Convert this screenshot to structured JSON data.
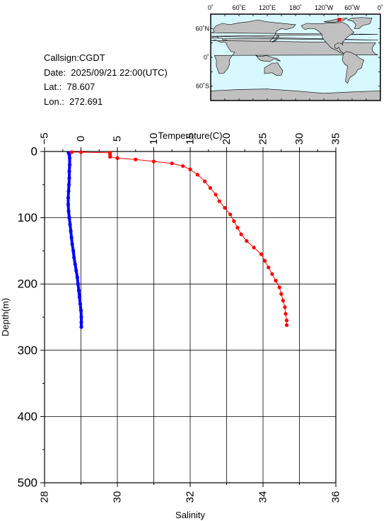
{
  "info": {
    "callsign": "Callsign:CGDT",
    "date": "Date:  2025/09/21 22:00(UTC)",
    "lat": "Lat.:  78.607",
    "lon": "Lon.:  272.691"
  },
  "map": {
    "top_labels": [
      "0˚",
      "60˚E",
      "120˚E",
      "180˚",
      "120˚W",
      "60˚W",
      "0˚"
    ],
    "left_labels": [
      "60˚N",
      "0˚",
      "60˚S"
    ],
    "ocean_color": "#d8f8ff",
    "land_color": "#c0c0c0",
    "marker_color": "#ff0000",
    "station": {
      "lat": 78.607,
      "lon": 272.691
    }
  },
  "chart_data": {
    "type": "scatter",
    "title": "",
    "top_axis": {
      "label": "Temperature(C)",
      "range": [
        -5,
        35
      ],
      "ticks": [
        "−5",
        "0",
        "5",
        "10",
        "15",
        "20",
        "25",
        "30",
        "35"
      ]
    },
    "bottom_axis": {
      "label": "Salinity",
      "range": [
        28,
        36
      ],
      "ticks": [
        "28",
        "30",
        "32",
        "34",
        "36"
      ]
    },
    "left_axis": {
      "label": "Depth(m)",
      "range": [
        0,
        500
      ],
      "inverted": true,
      "ticks": [
        "0",
        "100",
        "200",
        "300",
        "400",
        "500"
      ]
    },
    "grid": true,
    "series": [
      {
        "color": "#0000ff",
        "axis": "top",
        "points": [
          [
            -1.7,
            2
          ],
          [
            -1.6,
            5
          ],
          [
            -1.55,
            10
          ],
          [
            -1.55,
            20
          ],
          [
            -1.6,
            30
          ],
          [
            -1.6,
            40
          ],
          [
            -1.65,
            50
          ],
          [
            -1.7,
            60
          ],
          [
            -1.75,
            70
          ],
          [
            -1.75,
            80
          ],
          [
            -1.7,
            90
          ],
          [
            -1.6,
            100
          ],
          [
            -1.5,
            110
          ],
          [
            -1.4,
            120
          ],
          [
            -1.3,
            130
          ],
          [
            -1.2,
            140
          ],
          [
            -1.05,
            150
          ],
          [
            -0.95,
            160
          ],
          [
            -0.8,
            170
          ],
          [
            -0.65,
            180
          ],
          [
            -0.5,
            190
          ],
          [
            -0.4,
            200
          ],
          [
            -0.3,
            210
          ],
          [
            -0.2,
            220
          ],
          [
            -0.1,
            230
          ],
          [
            0.0,
            240
          ],
          [
            0.05,
            250
          ],
          [
            0.05,
            258
          ],
          [
            0.05,
            265
          ]
        ]
      },
      {
        "color": "#ff0000",
        "axis": "bottom",
        "points": [
          [
            28.75,
            1
          ],
          [
            29.0,
            1
          ],
          [
            29.8,
            2
          ],
          [
            29.8,
            5
          ],
          [
            29.8,
            8
          ],
          [
            30.0,
            10
          ],
          [
            30.5,
            12
          ],
          [
            31.0,
            15
          ],
          [
            31.5,
            18
          ],
          [
            31.8,
            22
          ],
          [
            32.0,
            27
          ],
          [
            32.2,
            35
          ],
          [
            32.4,
            45
          ],
          [
            32.55,
            55
          ],
          [
            32.7,
            65
          ],
          [
            32.8,
            75
          ],
          [
            32.95,
            85
          ],
          [
            33.1,
            95
          ],
          [
            33.2,
            105
          ],
          [
            33.3,
            115
          ],
          [
            33.4,
            125
          ],
          [
            33.55,
            135
          ],
          [
            33.75,
            145
          ],
          [
            33.95,
            155
          ],
          [
            34.05,
            165
          ],
          [
            34.15,
            175
          ],
          [
            34.25,
            185
          ],
          [
            34.35,
            195
          ],
          [
            34.45,
            205
          ],
          [
            34.5,
            215
          ],
          [
            34.55,
            225
          ],
          [
            34.6,
            235
          ],
          [
            34.62,
            245
          ],
          [
            34.65,
            255
          ],
          [
            34.65,
            262
          ]
        ]
      }
    ]
  }
}
